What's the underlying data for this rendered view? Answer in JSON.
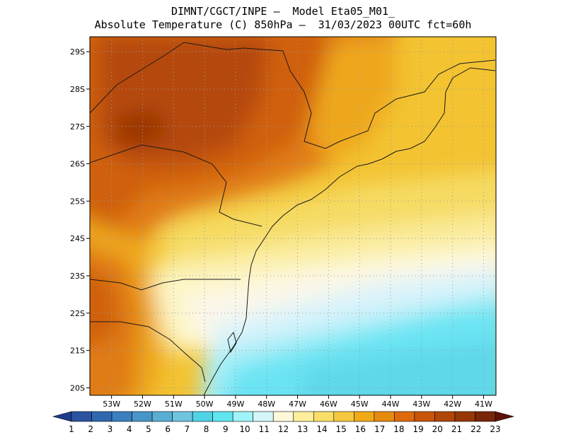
{
  "title": {
    "line1": "DIMNT/CGCT/INPE –  Model Eta05_M01_",
    "line2": "Absolute Temperature (C) 850hPa –  31/03/2023 00UTC fct=60h"
  },
  "map": {
    "lat_labels": [
      "20S",
      "21S",
      "22S",
      "23S",
      "24S",
      "25S",
      "26S",
      "27S",
      "28S",
      "29S"
    ],
    "lon_labels": [
      "53W",
      "52W",
      "51W",
      "50W",
      "49W",
      "48W",
      "47W",
      "46W",
      "45W",
      "44W",
      "43W",
      "42W",
      "41W"
    ],
    "lat_range": [
      -29.4,
      -19.8
    ],
    "lon_range": [
      -53.7,
      -40.6
    ],
    "colors": {
      "t20": "#b54a0a",
      "t19": "#d0610c",
      "t18": "#e07c14",
      "t17": "#eea71a",
      "t16": "#f3c332",
      "t15": "#f6db64",
      "t14": "#faeb9a",
      "t13": "#fdf6c8",
      "t12": "#fbf7ea",
      "t11": "#d8f3fb",
      "t10": "#a6eef8",
      "t9": "#6be4f3",
      "t8": "#5fd8ea",
      "t21": "#9a3405"
    }
  },
  "colorbar": {
    "labels": [
      "1",
      "2",
      "3",
      "4",
      "5",
      "6",
      "7",
      "8",
      "9",
      "10",
      "11",
      "12",
      "13",
      "14",
      "15",
      "16",
      "17",
      "18",
      "19",
      "20",
      "21",
      "22",
      "23"
    ],
    "colors": [
      "#1e3c8c",
      "#2a53a0",
      "#3068b0",
      "#3a7fbf",
      "#4896c9",
      "#5aaed4",
      "#6fc4de",
      "#4fd3e6",
      "#5fe6f0",
      "#a0f4f8",
      "#d4f6f8",
      "#fff8d8",
      "#fcee9a",
      "#f9df6a",
      "#f6c840",
      "#f0aa18",
      "#e68a10",
      "#dc6a0c",
      "#c8550a",
      "#b04608",
      "#963806",
      "#7a2608",
      "#5c1208"
    ]
  }
}
